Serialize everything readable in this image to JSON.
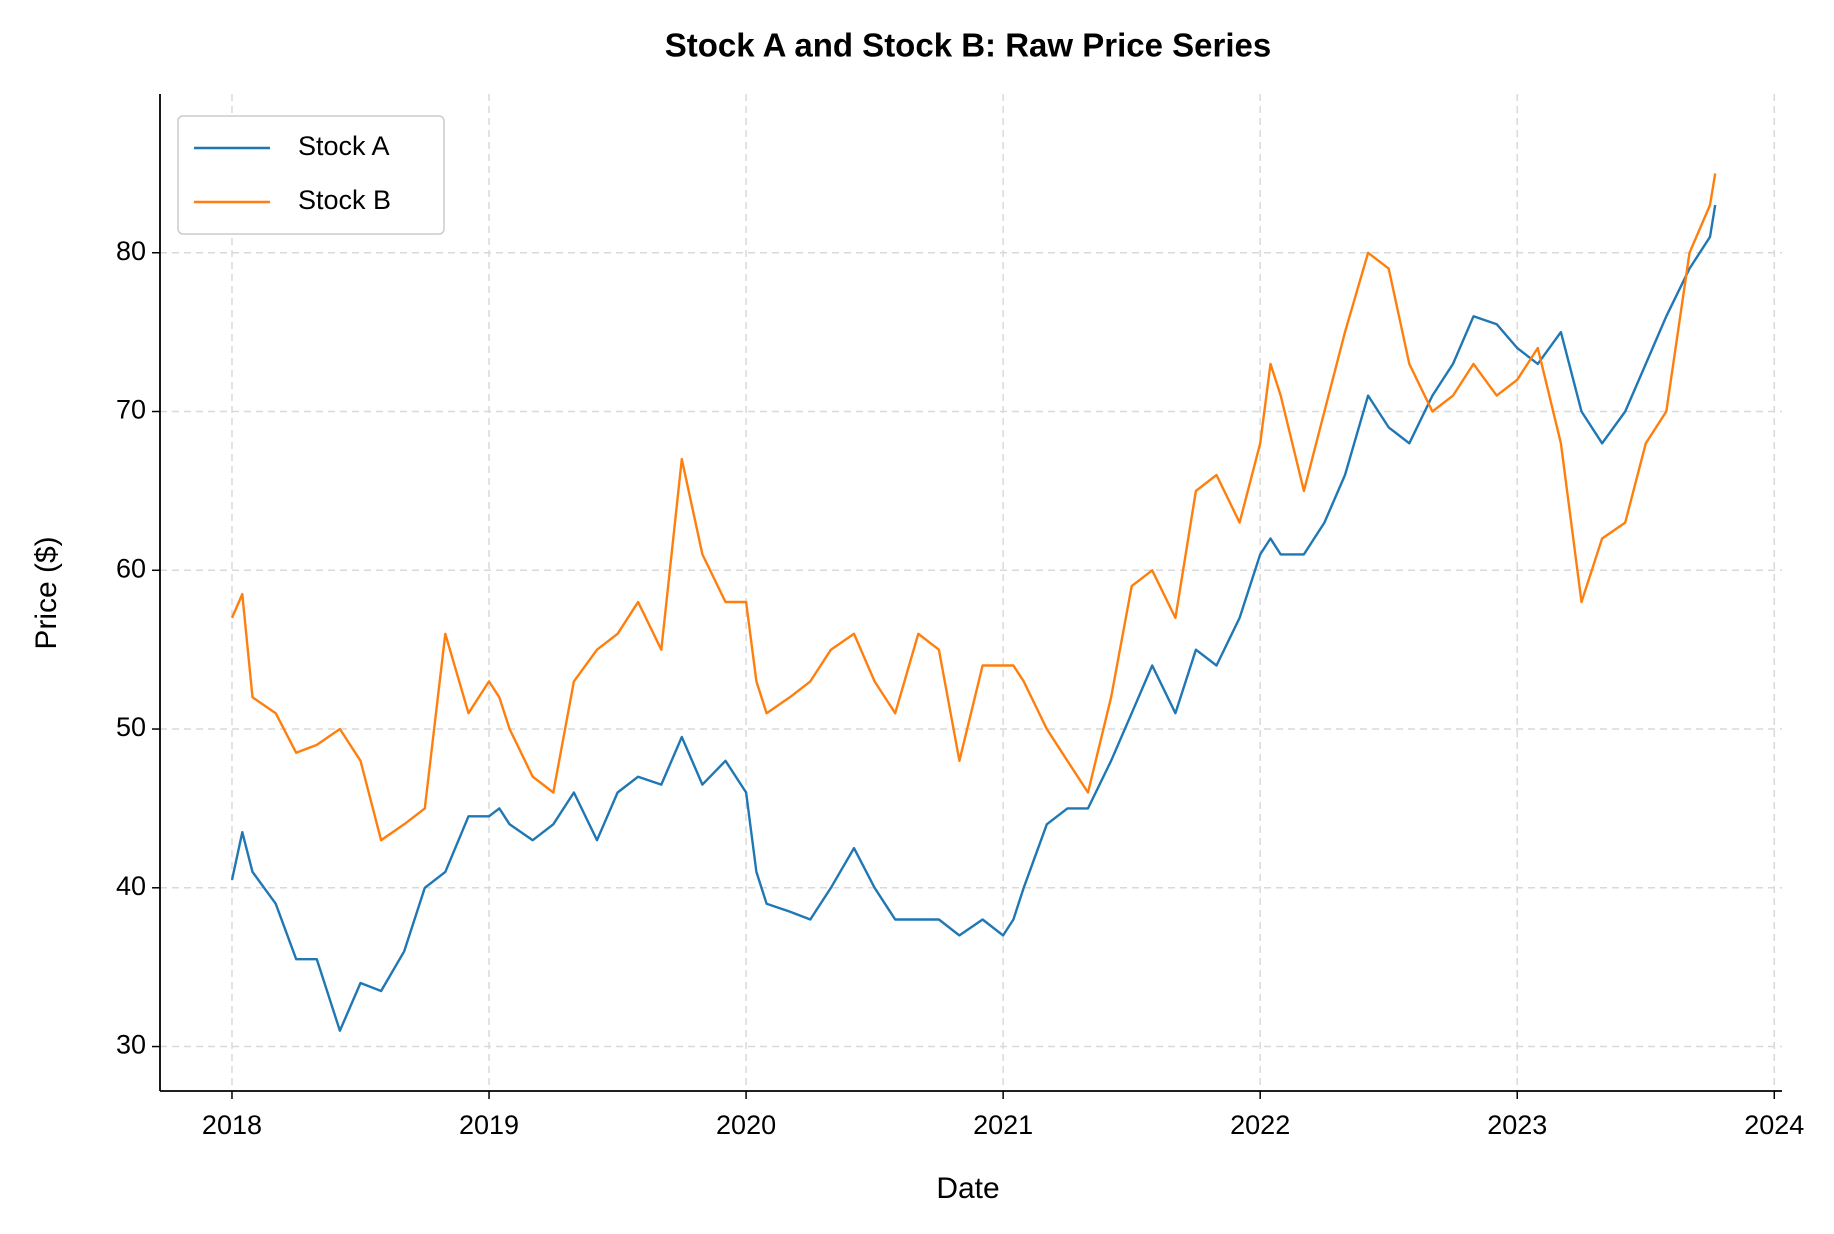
{
  "chart_data": {
    "type": "line",
    "title": "Stock A and Stock B: Raw Price Series",
    "x_label": "Date",
    "y_label": "Price ($)",
    "x": [
      2018.0,
      2018.04,
      2018.08,
      2018.17,
      2018.25,
      2018.33,
      2018.42,
      2018.5,
      2018.58,
      2018.67,
      2018.75,
      2018.83,
      2018.92,
      2019.0,
      2019.04,
      2019.08,
      2019.17,
      2019.25,
      2019.33,
      2019.42,
      2019.5,
      2019.58,
      2019.67,
      2019.75,
      2019.83,
      2019.92,
      2020.0,
      2020.04,
      2020.08,
      2020.17,
      2020.25,
      2020.33,
      2020.42,
      2020.5,
      2020.58,
      2020.67,
      2020.75,
      2020.83,
      2020.92,
      2021.0,
      2021.04,
      2021.08,
      2021.17,
      2021.25,
      2021.33,
      2021.42,
      2021.5,
      2021.58,
      2021.67,
      2021.75,
      2021.83,
      2021.92,
      2022.0,
      2022.04,
      2022.08,
      2022.17,
      2022.25,
      2022.33,
      2022.42,
      2022.5,
      2022.58,
      2022.67,
      2022.75,
      2022.83,
      2022.92,
      2023.0,
      2023.08,
      2023.17,
      2023.25,
      2023.33,
      2023.42,
      2023.5,
      2023.58,
      2023.67,
      2023.75,
      2023.77
    ],
    "series": [
      {
        "name": "Stock A",
        "color": "#1f77b4",
        "values": [
          40.5,
          43.5,
          41,
          39,
          35.5,
          35.5,
          31,
          34,
          33.5,
          36,
          40,
          41,
          44.5,
          44.5,
          45,
          44,
          43,
          44,
          46,
          43,
          46,
          47,
          46.5,
          49.5,
          46.5,
          48,
          46,
          41,
          39,
          38.5,
          38,
          40,
          42.5,
          40,
          38,
          38,
          38,
          37,
          38,
          37,
          38,
          40,
          44,
          45,
          45,
          48,
          51,
          54,
          51,
          55,
          54,
          57,
          61,
          62,
          61,
          61,
          63,
          66,
          71,
          69,
          68,
          71,
          73,
          76,
          75.5,
          74,
          73,
          75,
          70,
          68,
          70,
          73,
          76,
          79,
          81,
          83
        ]
      },
      {
        "name": "Stock B",
        "color": "#ff7f0e",
        "values": [
          57,
          58.5,
          52,
          51,
          48.5,
          49,
          50,
          48,
          43,
          44,
          45,
          56,
          51,
          53,
          52,
          50,
          47,
          46,
          53,
          55,
          56,
          58,
          55,
          67,
          61,
          58,
          58,
          53,
          51,
          52,
          53,
          55,
          56,
          53,
          51,
          56,
          55,
          48,
          54,
          54,
          54,
          53,
          50,
          48,
          46,
          52,
          59,
          60,
          57,
          65,
          66,
          63,
          68,
          73,
          71,
          65,
          70,
          75,
          80,
          79,
          73,
          70,
          71,
          73,
          71,
          72,
          74,
          68,
          58,
          62,
          63,
          68,
          70,
          80,
          83,
          85
        ]
      }
    ],
    "xlim": [
      2017.72,
      2024.03
    ],
    "xticks": [
      2018,
      2019,
      2020,
      2021,
      2022,
      2023,
      2024
    ],
    "ylim": [
      27.2,
      90
    ],
    "yticks": [
      30,
      40,
      50,
      60,
      70,
      80
    ],
    "grid": true,
    "legend": "upper left"
  }
}
